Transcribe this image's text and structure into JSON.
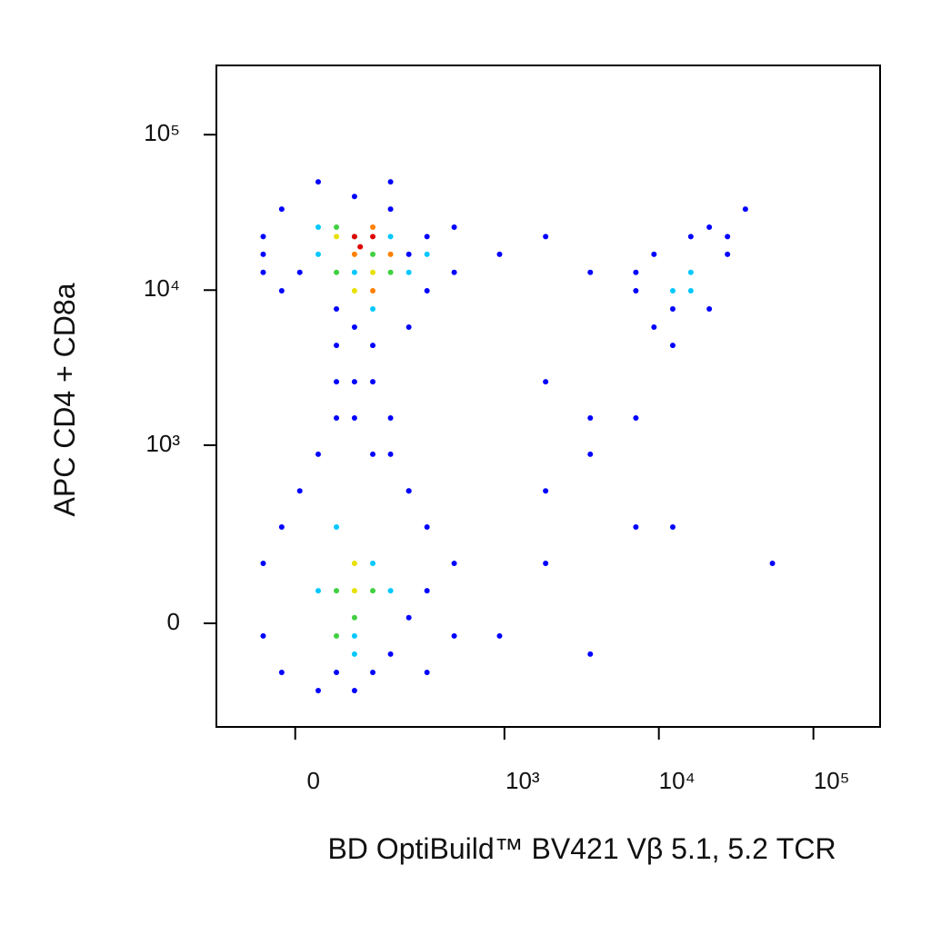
{
  "chart_data": {
    "type": "scatter",
    "xlabel": "BD OptiBuild™ BV421 Vβ 5.1, 5.2 TCR",
    "ylabel": "APC CD4 + CD8a",
    "xscale": "biexponential",
    "yscale": "biexponential",
    "xlim": [
      -130,
      270000
    ],
    "ylim": [
      -318,
      279000
    ],
    "xticks": [
      0,
      {
        "value": 1000,
        "label": "10³"
      },
      {
        "value": 10000,
        "label": "10⁴"
      },
      {
        "value": 100000,
        "label": "10⁵"
      }
    ],
    "yticks": [
      0,
      {
        "value": 1000,
        "label": "10³"
      },
      {
        "value": 10000,
        "label": "10⁴"
      },
      {
        "value": 100000,
        "label": "10⁵"
      }
    ],
    "series": [
      {
        "color": "#0000ff",
        "x": [
          -44,
          -18,
          6,
          31,
          58,
          89,
          127,
          173,
          233,
          310,
          470,
          470,
          310,
          233,
          -44,
          -18,
          930,
          1850,
          3600,
          -44,
          173,
          89,
          58,
          58,
          89,
          127,
          89,
          173,
          31,
          127,
          58,
          173,
          233,
          -44,
          -18,
          6,
          31,
          58,
          89,
          127,
          173,
          233,
          310,
          470,
          310,
          233,
          -44,
          -18,
          470,
          930,
          1850,
          3600,
          7100,
          12300,
          54300,
          310,
          7100,
          9300,
          12300,
          16100,
          21200,
          27800,
          36300,
          7100,
          9300,
          21200,
          12300,
          27800,
          1850,
          3600,
          7100,
          1850,
          3600
        ],
        "y": [
          22100,
          33200,
          13000,
          49700,
          7570,
          5780,
          4410,
          33200,
          17000,
          22100,
          25400,
          13000,
          9900,
          5780,
          13000,
          9900,
          17000,
          22100,
          13000,
          17000,
          49700,
          40000,
          4410,
          2570,
          1500,
          873,
          2570,
          1500,
          873,
          2570,
          1500,
          873,
          501,
          145,
          282,
          501,
          -168,
          -114,
          -168,
          -114,
          -68,
          12,
          72,
          145,
          282,
          501,
          -27,
          -114,
          -27,
          -27,
          145,
          -68,
          282,
          282,
          145,
          -114,
          9900,
          5780,
          4410,
          22100,
          25400,
          17000,
          33200,
          13000,
          17000,
          7570,
          7570,
          22100,
          2570,
          873,
          1500,
          501,
          1500
        ]
      },
      {
        "color": "#00c8ff",
        "x": [
          31,
          89,
          127,
          233,
          31,
          173,
          310,
          31,
          89,
          127,
          58,
          173,
          89,
          12300,
          16100,
          16100
        ],
        "y": [
          17000,
          13000,
          7570,
          13000,
          25400,
          22100,
          17000,
          72,
          -27,
          145,
          282,
          72,
          -68,
          9900,
          13000,
          9900
        ]
      },
      {
        "color": "#40d040",
        "x": [
          58,
          127,
          89,
          173,
          58,
          58,
          89,
          127,
          58
        ],
        "y": [
          13000,
          17000,
          22100,
          13000,
          25400,
          72,
          12,
          72,
          -27
        ]
      },
      {
        "color": "#e8e000",
        "x": [
          89,
          127,
          58,
          89,
          89
        ],
        "y": [
          9900,
          13000,
          22100,
          72,
          145
        ]
      },
      {
        "color": "#ff8000",
        "x": [
          127,
          89,
          127,
          173
        ],
        "y": [
          9900,
          17000,
          25400,
          17000
        ]
      },
      {
        "color": "#e00000",
        "x": [
          89,
          127,
          100
        ],
        "y": [
          22100,
          22100,
          19000
        ]
      }
    ]
  }
}
